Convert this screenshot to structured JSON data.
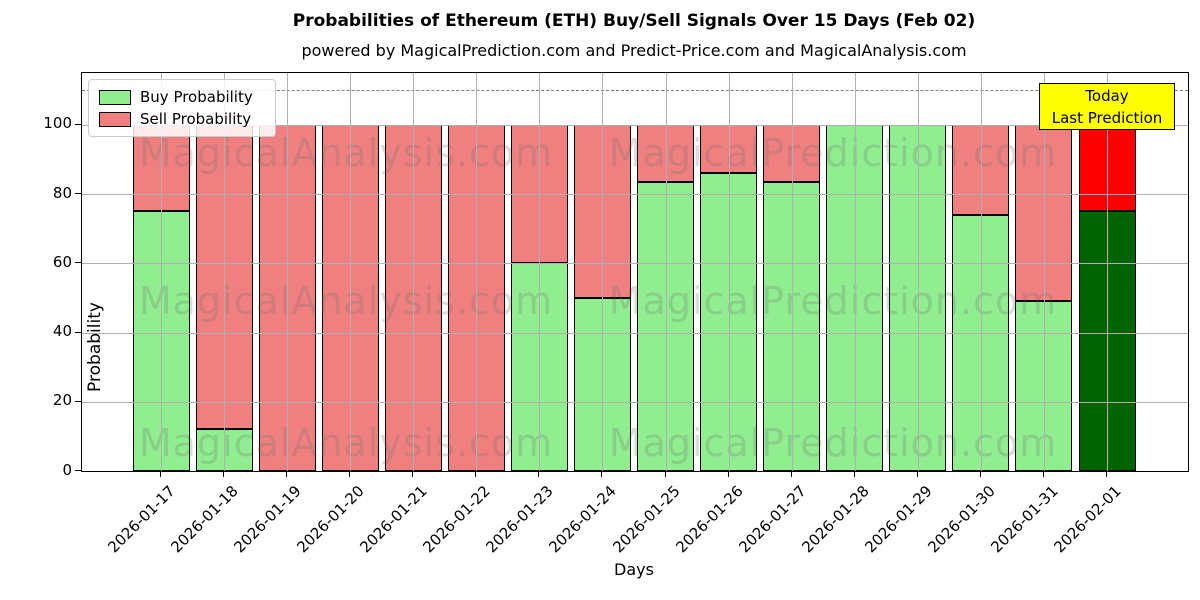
{
  "chart_data": {
    "type": "bar",
    "stacked": true,
    "title": "Probabilities of Ethereum (ETH) Buy/Sell Signals Over 15 Days (Feb 02)",
    "subtitle": "powered by MagicalPrediction.com and Predict-Price.com and MagicalAnalysis.com",
    "xlabel": "Days",
    "ylabel": "Probability",
    "categories": [
      "2026-01-17",
      "2026-01-18",
      "2026-01-19",
      "2026-01-20",
      "2026-01-21",
      "2026-01-22",
      "2026-01-23",
      "2026-01-24",
      "2026-01-25",
      "2026-01-26",
      "2026-01-27",
      "2026-01-28",
      "2026-01-29",
      "2026-01-30",
      "2026-01-31",
      "2026-02-01"
    ],
    "series": [
      {
        "name": "Buy Probability",
        "values": [
          75,
          12,
          0,
          0,
          0,
          0,
          60,
          50,
          83.5,
          86,
          83.5,
          100,
          100,
          74,
          49,
          75
        ]
      },
      {
        "name": "Sell Probability",
        "values": [
          25,
          88,
          100,
          100,
          100,
          100,
          40,
          50,
          16.5,
          14,
          16.5,
          0,
          0,
          26,
          51,
          25
        ]
      }
    ],
    "yticks": [
      0,
      20,
      40,
      60,
      80,
      100
    ],
    "ylim": [
      0,
      115
    ],
    "dashed_line_y": 110,
    "grid": "on, drawn above bars",
    "legend_position": "upper left",
    "colors": {
      "buy": "#90ee90",
      "sell": "#f08080",
      "today_buy": "#006400",
      "today_sell": "#ff0000",
      "bar_edge": "#000000",
      "grid": "#b0b0b0",
      "dashed_line": "#7f7f7f",
      "annotation_bg": "#ffff00"
    },
    "legend": {
      "buy_label": "Buy Probability",
      "sell_label": "Sell Probability"
    },
    "annotation": {
      "line1": "Today",
      "line2": "Last Prediction"
    },
    "watermarks": {
      "col1": "MagicalAnalysis.com",
      "col2": "MagicalPrediction.com"
    }
  }
}
